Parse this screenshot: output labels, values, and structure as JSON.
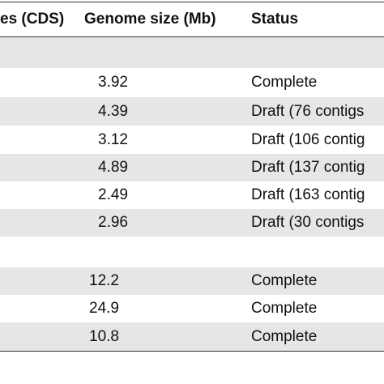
{
  "table": {
    "header": [
      "es (CDS)",
      "Genome size (Mb)",
      "Status"
    ],
    "rows": [
      [
        "",
        "",
        ""
      ],
      [
        "",
        "3.92",
        "Complete"
      ],
      [
        "",
        "4.39",
        "Draft (76 contigs"
      ],
      [
        "",
        "3.12",
        "Draft (106 contig"
      ],
      [
        "",
        "4.89",
        "Draft (137 contig"
      ],
      [
        "",
        "2.49",
        "Draft (163 contig"
      ],
      [
        "",
        "2.96",
        "Draft (30 contigs"
      ],
      [
        "",
        "",
        ""
      ],
      [
        "",
        "12.2",
        "Complete"
      ],
      [
        "",
        "24.9",
        "Complete"
      ],
      [
        "",
        "10.8",
        "Complete"
      ]
    ]
  }
}
